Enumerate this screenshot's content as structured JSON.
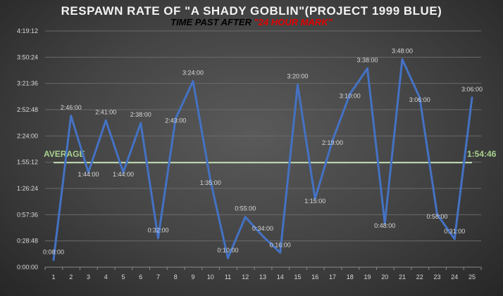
{
  "chart_data": {
    "type": "line",
    "title": "RESPAWN RATE OF \"A SHADY GOBLIN\"(PROJECT 1999 BLUE)",
    "subtitle_prefix": "TIME PAST AFTER",
    "subtitle_highlight": "\"24 HOUR MARK\"",
    "xlabel": "",
    "ylabel": "",
    "categories": [
      "1",
      "2",
      "3",
      "4",
      "5",
      "6",
      "7",
      "8",
      "9",
      "10",
      "11",
      "12",
      "13",
      "14",
      "15",
      "16",
      "17",
      "18",
      "19",
      "20",
      "21",
      "22",
      "23",
      "24",
      "25"
    ],
    "values_seconds": [
      480,
      9960,
      6240,
      9660,
      6240,
      9480,
      1920,
      9780,
      12240,
      5700,
      600,
      3300,
      2040,
      960,
      12000,
      4500,
      8340,
      11400,
      13080,
      2880,
      13680,
      11160,
      3480,
      1860,
      11160
    ],
    "data_labels": [
      "0:08:00",
      "2:46:00",
      "1:44:00",
      "2:41:00",
      "1:44:00",
      "2:38:00",
      "0:32:00",
      "2:43:00",
      "3:24:00",
      "1:35:00",
      "0:10:00",
      "0:55:00",
      "0:34:00",
      "0:16:00",
      "3:20:00",
      "1:15:00",
      "2:19:00",
      "3:10:00",
      "3:38:00",
      "0:48:00",
      "3:48:00",
      "3:06:00",
      "0:58:00",
      "0:31:00",
      "3:06:00"
    ],
    "y_ticks": [
      "0:00:00",
      "0:28:48",
      "0:57:36",
      "1:26:24",
      "1:55:12",
      "2:24:00",
      "2:52:48",
      "3:21:36",
      "3:50:24",
      "4:19:12"
    ],
    "ylim_seconds": [
      0,
      15552
    ],
    "average": {
      "label": "AVERAGE",
      "value_label": "1:54:46",
      "value_seconds": 6886
    },
    "grid": true,
    "colors": {
      "line": "#4472c4",
      "average": "#c5e0b4",
      "average_text": "#a9d18e",
      "grid": "#6a6a6a",
      "text": "#d9d9d9"
    }
  }
}
